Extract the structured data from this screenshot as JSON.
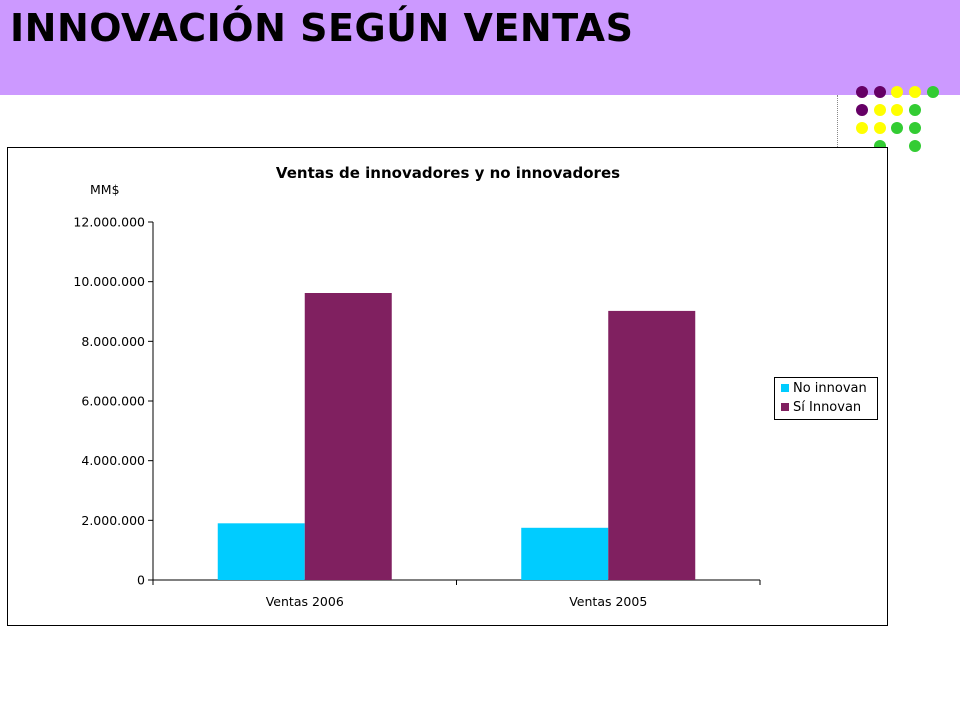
{
  "slide": {
    "title": "INNOVACIÓN SEGÚN VENTAS",
    "band_color": "#cc99ff"
  },
  "decoration": {
    "dot_colors": [
      "#660066",
      "#ffff00",
      "#33cc33"
    ]
  },
  "chart_data": {
    "type": "bar",
    "title": "Ventas  de innovadores y no innovadores",
    "ylabel": "MM$",
    "xlabel": "",
    "categories": [
      "Ventas 2006",
      "Ventas 2005"
    ],
    "series": [
      {
        "name": "No innovan",
        "values": [
          1900000,
          1750000
        ],
        "color": "#00ccff"
      },
      {
        "name": "Sí Innovan",
        "values": [
          9620000,
          9020000
        ],
        "color": "#802060"
      }
    ],
    "ylim": [
      0,
      12000000
    ],
    "yticks": [
      "0",
      "2.000.000",
      "4.000.000",
      "6.000.000",
      "8.000.000",
      "10.000.000",
      "12.000.000"
    ],
    "grid": false,
    "legend_position": "right"
  }
}
